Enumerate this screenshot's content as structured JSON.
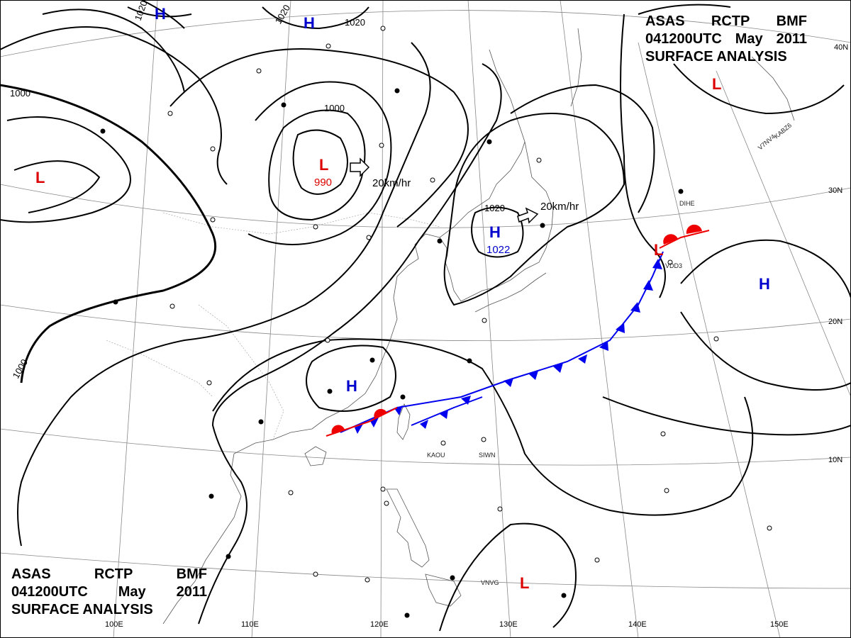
{
  "title_block_top": {
    "line1": [
      "ASAS",
      "RCTP",
      "BMF"
    ],
    "line2": [
      "041200UTC",
      "May",
      "2011"
    ],
    "line3": "SURFACE ANALYSIS"
  },
  "title_block_bottom": {
    "line1": [
      "ASAS",
      "RCTP",
      "BMF"
    ],
    "line2": [
      "041200UTC",
      "May",
      "2011"
    ],
    "line3": "SURFACE ANALYSIS"
  },
  "longitude_labels": [
    "100E",
    "110E",
    "120E",
    "130E",
    "140E",
    "150E"
  ],
  "latitude_labels": [
    "40N",
    "30N",
    "20N",
    "10N"
  ],
  "isobar_labels": [
    "1020",
    "1020",
    "1020",
    "1000",
    "1000",
    "1000",
    "1020"
  ],
  "pressure_centers": [
    {
      "type": "H",
      "value": "",
      "color": "#0000cc"
    },
    {
      "type": "H",
      "value": "",
      "color": "#0000cc"
    },
    {
      "type": "L",
      "value": "990",
      "color": "#dd0000"
    },
    {
      "type": "H",
      "value": "1022",
      "color": "#0000cc"
    },
    {
      "type": "L",
      "value": "",
      "color": "#dd0000"
    },
    {
      "type": "L",
      "value": "",
      "color": "#dd0000"
    },
    {
      "type": "L",
      "value": "",
      "color": "#dd0000"
    },
    {
      "type": "H",
      "value": "",
      "color": "#0000cc"
    },
    {
      "type": "H",
      "value": "",
      "color": "#0000cc"
    },
    {
      "type": "L",
      "value": "",
      "color": "#dd0000"
    }
  ],
  "motion_labels": [
    "20km/hr",
    "20km/hr"
  ],
  "station_labels": [
    "DIHE",
    "KAOU",
    "SIWN",
    "VNVG",
    "V7NV4",
    "VDD3",
    "KABZ6"
  ],
  "colors": {
    "high": "#0000cc",
    "low": "#dd0000",
    "cold_front": "#0000ee",
    "warm_front": "#ee0000",
    "coastline": "#555555"
  }
}
